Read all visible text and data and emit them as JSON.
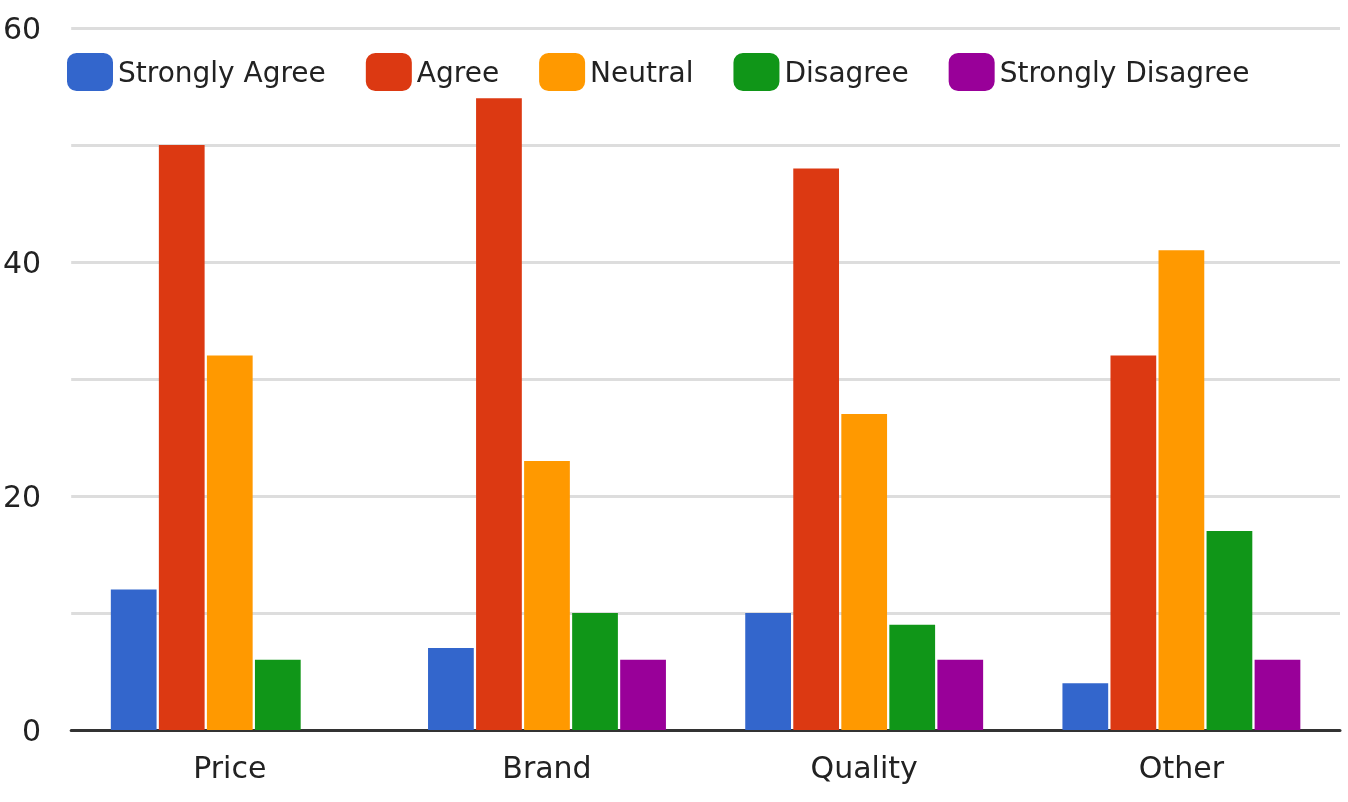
{
  "chart_data": {
    "type": "bar",
    "categories": [
      "Price",
      "Brand",
      "Quality",
      "Other"
    ],
    "series": [
      {
        "name": "Strongly Agree",
        "color": "#3366cc",
        "values": [
          12,
          7,
          10,
          4
        ]
      },
      {
        "name": "Agree",
        "color": "#dc3912",
        "values": [
          50,
          54,
          48,
          32
        ]
      },
      {
        "name": "Neutral",
        "color": "#ff9900",
        "values": [
          32,
          23,
          27,
          41
        ]
      },
      {
        "name": "Disagree",
        "color": "#109618",
        "values": [
          6,
          10,
          9,
          17
        ]
      },
      {
        "name": "Strongly Disagree",
        "color": "#990099",
        "values": [
          0,
          6,
          6,
          6
        ]
      }
    ],
    "ylim": [
      0,
      60
    ],
    "yticks": [
      0,
      {
        "value": 10,
        "label": null
      },
      20,
      {
        "value": 30,
        "label": null
      },
      40,
      {
        "value": 50,
        "label": null
      },
      60
    ],
    "grid": "y",
    "legend": "top left"
  }
}
